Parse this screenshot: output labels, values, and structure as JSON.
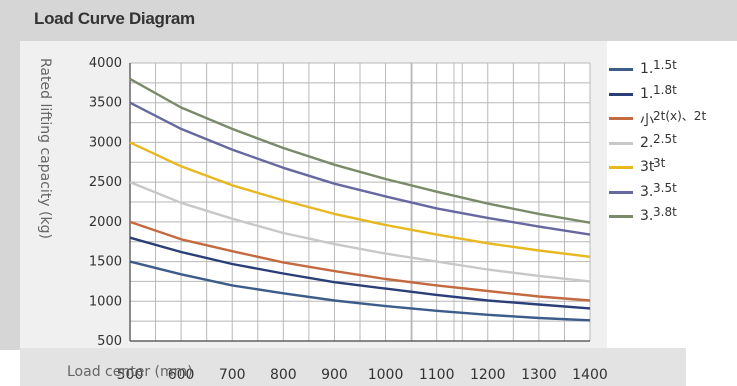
{
  "header": {
    "title": "Load Curve Diagram"
  },
  "chart_data": {
    "type": "line",
    "xlabel": "Load center (mm)",
    "ylabel": "Rated lifting capacity (kg)",
    "xlim": [
      500,
      1400
    ],
    "ylim": [
      500,
      4000
    ],
    "x_ticks": [
      "500",
      "600",
      "700",
      "800",
      "900",
      "1000",
      "1100",
      "1200",
      "1300",
      "1400"
    ],
    "y_ticks": [
      "500",
      "1000",
      "1500",
      "2000",
      "2500",
      "3000",
      "3500",
      "4000"
    ],
    "grid": true,
    "legend_position": "right",
    "series": [
      {
        "code": "1.",
        "name": "1.5t",
        "color": "#3c5c8a",
        "x": [
          400,
          500,
          600,
          700,
          800,
          900,
          1000,
          1100,
          1200,
          1300,
          1400
        ],
        "y": [
          1500,
          1500,
          1340,
          1200,
          1100,
          1010,
          940,
          880,
          830,
          790,
          760
        ]
      },
      {
        "code": "1.",
        "name": "1.8t",
        "color": "#2a3f78",
        "x": [
          400,
          500,
          600,
          700,
          800,
          900,
          1000,
          1100,
          1200,
          1300,
          1400
        ],
        "y": [
          1800,
          1800,
          1620,
          1470,
          1350,
          1240,
          1160,
          1080,
          1010,
          960,
          910
        ]
      },
      {
        "code": "小",
        "name": "2t(x)、2t",
        "color": "#c46a40",
        "x": [
          400,
          500,
          600,
          700,
          800,
          900,
          1000,
          1100,
          1200,
          1300,
          1400
        ],
        "y": [
          2000,
          2000,
          1780,
          1630,
          1490,
          1380,
          1280,
          1200,
          1130,
          1060,
          1010
        ]
      },
      {
        "code": "2.",
        "name": "2.5t",
        "color": "#c8c8c8",
        "x": [
          400,
          500,
          600,
          700,
          800,
          900,
          1000,
          1100,
          1200,
          1300,
          1400
        ],
        "y": [
          2500,
          2500,
          2240,
          2040,
          1860,
          1720,
          1600,
          1500,
          1400,
          1320,
          1250
        ]
      },
      {
        "code": "3t",
        "name": "3t",
        "color": "#e8b820",
        "x": [
          400,
          500,
          600,
          700,
          800,
          900,
          1000,
          1100,
          1200,
          1300,
          1400
        ],
        "y": [
          3000,
          3000,
          2700,
          2460,
          2270,
          2100,
          1960,
          1840,
          1730,
          1640,
          1560
        ]
      },
      {
        "code": "3.",
        "name": "3.5t",
        "color": "#6868a0",
        "x": [
          400,
          500,
          600,
          700,
          800,
          900,
          1000,
          1100,
          1200,
          1300,
          1400
        ],
        "y": [
          3500,
          3500,
          3170,
          2910,
          2680,
          2480,
          2320,
          2170,
          2050,
          1940,
          1840
        ]
      },
      {
        "code": "3.",
        "name": "3.8t",
        "color": "#7b8a68",
        "x": [
          400,
          500,
          600,
          700,
          800,
          900,
          1000,
          1100,
          1200,
          1300,
          1400
        ],
        "y": [
          3800,
          3800,
          3440,
          3170,
          2930,
          2720,
          2540,
          2380,
          2230,
          2100,
          1990
        ]
      }
    ]
  }
}
